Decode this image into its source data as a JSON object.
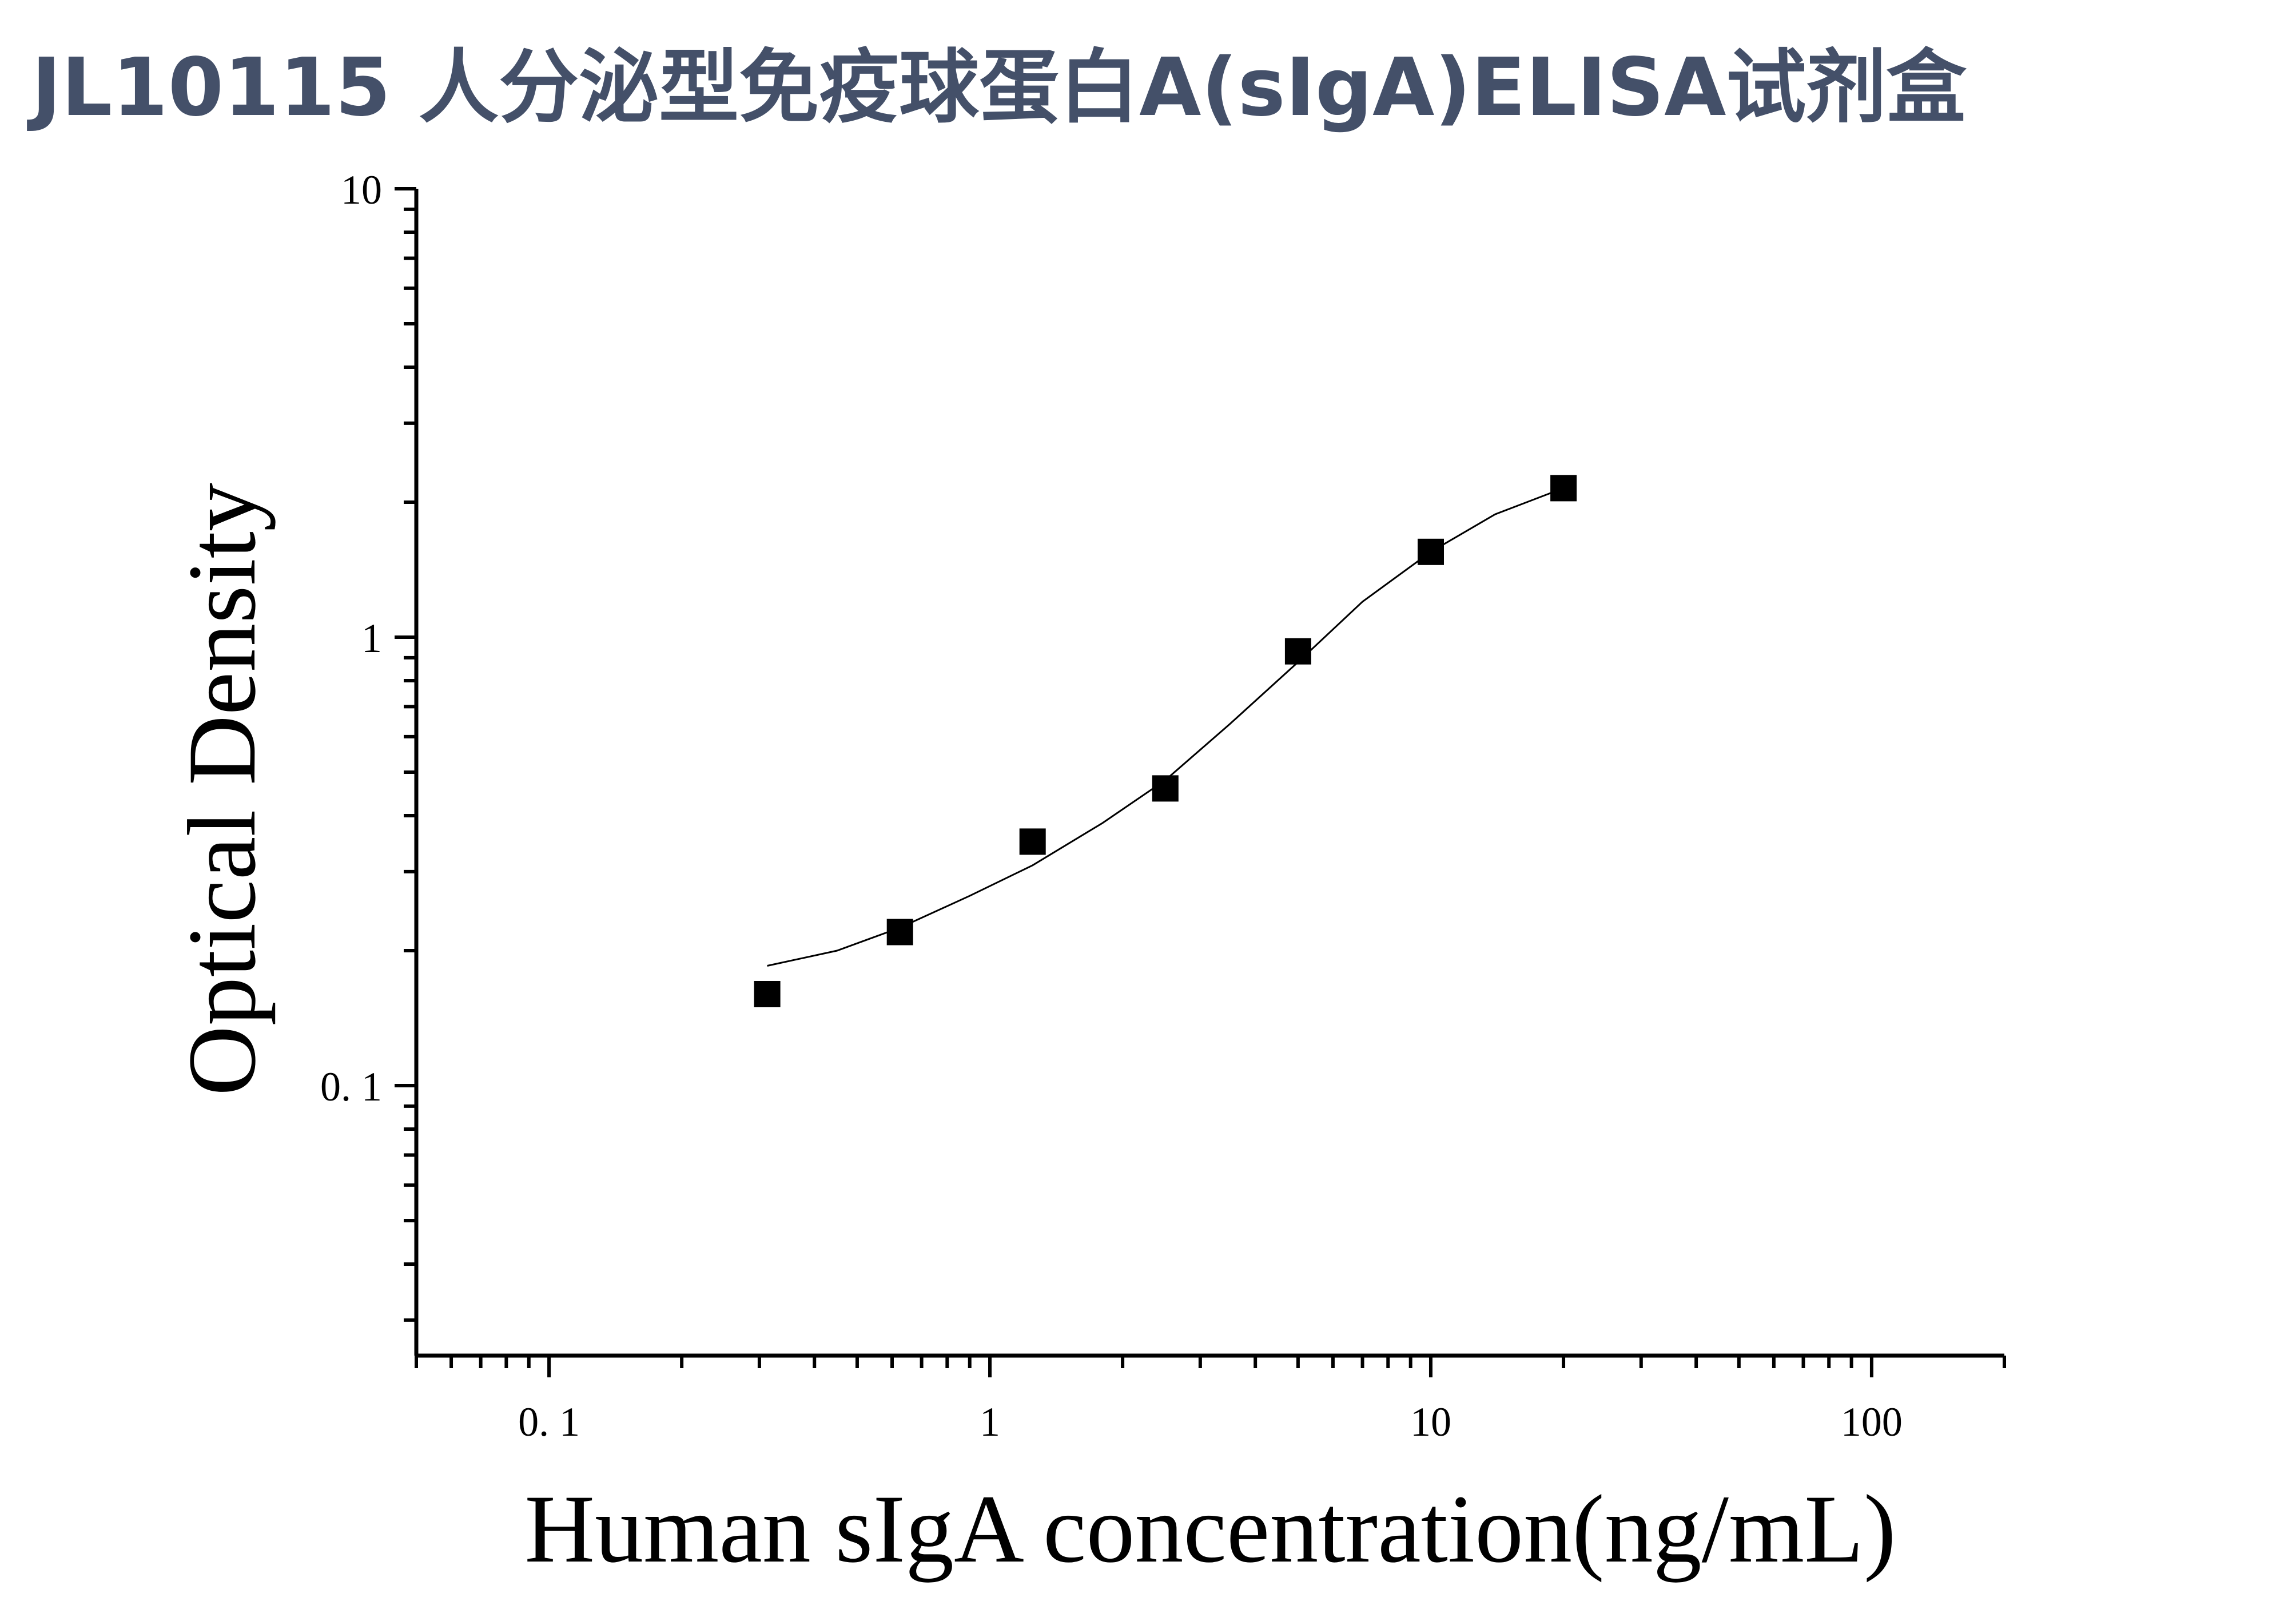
{
  "title": "JL10115 人分泌型免疫球蛋白A(sIgA)ELISA试剂盒",
  "chart_data": {
    "type": "scatter",
    "xlabel": "Human sIgA concentration(ng/mL)",
    "ylabel": "Optical Density",
    "xscale": "log",
    "yscale": "log",
    "xlim": [
      0.05,
      200
    ],
    "ylim": [
      0.025,
      10
    ],
    "x_ticks": [
      0.1,
      1,
      10,
      100
    ],
    "x_tick_labels": [
      "0. 1",
      "1",
      "10",
      "100"
    ],
    "y_ticks": [
      0.1,
      1,
      10
    ],
    "y_tick_labels": [
      "0. 1",
      "1",
      "10"
    ],
    "grid": false,
    "series": [
      {
        "x": [
          0.3125,
          0.625,
          1.25,
          2.5,
          5,
          10,
          20
        ],
        "y": [
          0.16,
          0.22,
          0.35,
          0.46,
          0.93,
          1.55,
          2.15
        ],
        "marker": "square",
        "color": "#000000",
        "fit_curve": {
          "x": [
            0.3125,
            0.45,
            0.625,
            0.9,
            1.25,
            1.8,
            2.5,
            3.5,
            5,
            7,
            10,
            14,
            20
          ],
          "y": [
            0.185,
            0.2,
            0.225,
            0.265,
            0.31,
            0.385,
            0.48,
            0.64,
            0.88,
            1.2,
            1.55,
            1.88,
            2.15
          ]
        }
      }
    ],
    "colors": {
      "markers": "#000000",
      "axes": "#000000",
      "title": "#445069"
    }
  }
}
